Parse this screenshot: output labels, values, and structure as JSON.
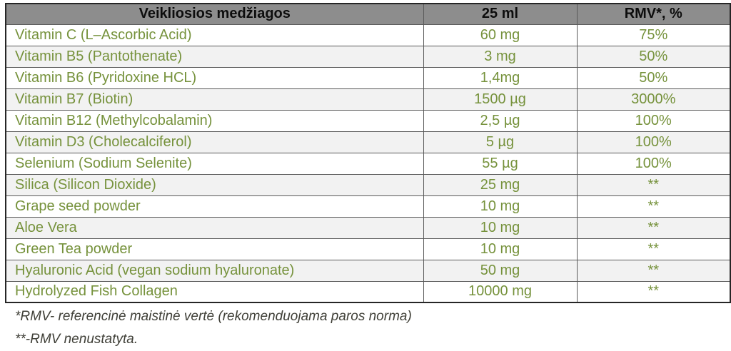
{
  "table": {
    "headers": [
      "Veikliosios medžiagos",
      "25 ml",
      "RMV*, %"
    ],
    "rows": [
      {
        "name": "Vitamin C (L–Ascorbic Acid)",
        "amount": "60 mg",
        "rmv": "75%"
      },
      {
        "name": "Vitamin B5 (Pantothenate)",
        "amount": "3 mg",
        "rmv": "50%"
      },
      {
        "name": "Vitamin B6 (Pyridoxine HCL)",
        "amount": "1,4mg",
        "rmv": "50%"
      },
      {
        "name": "Vitamin B7 (Biotin)",
        "amount": "1500 µg",
        "rmv": "3000%"
      },
      {
        "name": "Vitamin B12 (Methylcobalamin)",
        "amount": "2,5 µg",
        "rmv": "100%"
      },
      {
        "name": "Vitamin D3 (Cholecalciferol)",
        "amount": "5 µg",
        "rmv": "100%"
      },
      {
        "name": "Selenium (Sodium Selenite)",
        "amount": "55 µg",
        "rmv": "100%"
      },
      {
        "name": "Silica (Silicon Dioxide)",
        "amount": "25 mg",
        "rmv": "**"
      },
      {
        "name": "Grape seed powder",
        "amount": "10 mg",
        "rmv": "**"
      },
      {
        "name": "Aloe Vera",
        "amount": "10 mg",
        "rmv": "**"
      },
      {
        "name": "Green Tea powder",
        "amount": "10 mg",
        "rmv": "**"
      },
      {
        "name": "Hyaluronic Acid (vegan sodium hyaluronate)",
        "amount": "50 mg",
        "rmv": "**"
      },
      {
        "name": "Hydrolyzed Fish Collagen",
        "amount": "10000 mg",
        "rmv": "**"
      }
    ]
  },
  "footnotes": [
    "*RMV- referencinė maistinė vertė (rekomenduojama paros norma)",
    "**-RMV nenustatyta."
  ],
  "colors": {
    "header_bg": "#8d8d8d",
    "header_text": "#0d0d0d",
    "body_text_green": "#76923c",
    "stripe_bg": "#f2f2f2",
    "row_bg": "#ffffff",
    "border_outer": "#262626",
    "border_inner": "#5a5a5a",
    "footnote_text": "#3f3f37"
  }
}
